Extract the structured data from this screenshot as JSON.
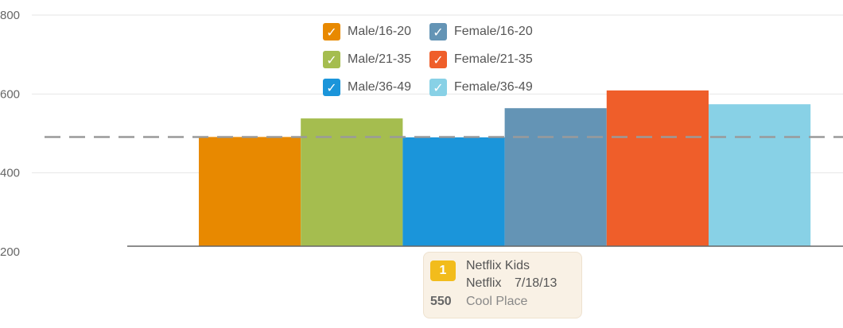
{
  "chart_data": {
    "type": "bar",
    "categories": [
      "Male/16-20",
      "Male/21-35",
      "Male/36-49",
      "Female/16-20",
      "Female/21-35",
      "Female/36-49"
    ],
    "values": [
      491,
      538,
      490,
      564,
      609,
      574
    ],
    "colors": [
      "#e88900",
      "#a5bd4f",
      "#1b95da",
      "#6494b5",
      "#ef5e2a",
      "#88d1e6"
    ],
    "ylim": [
      200,
      800
    ],
    "yticks": [
      200,
      400,
      600,
      800
    ],
    "reference_line": 491,
    "grid": true,
    "legend_position": "top-center"
  },
  "legend": {
    "items": [
      {
        "label": "Male/16-20",
        "color": "#e88900",
        "checked": true
      },
      {
        "label": "Female/16-20",
        "color": "#6494b5",
        "checked": true
      },
      {
        "label": "Male/21-35",
        "color": "#a5bd4f",
        "checked": true
      },
      {
        "label": "Female/21-35",
        "color": "#ef5e2a",
        "checked": true
      },
      {
        "label": "Male/36-49",
        "color": "#1b95da",
        "checked": true
      },
      {
        "label": "Female/36-49",
        "color": "#88d1e6",
        "checked": true
      }
    ],
    "check_glyph": "✓"
  },
  "tooltip": {
    "rank": "1",
    "title": "Netflix Kids",
    "network": "Netflix",
    "date": "7/18/13",
    "value": "550",
    "subtitle": "Cool Place"
  }
}
